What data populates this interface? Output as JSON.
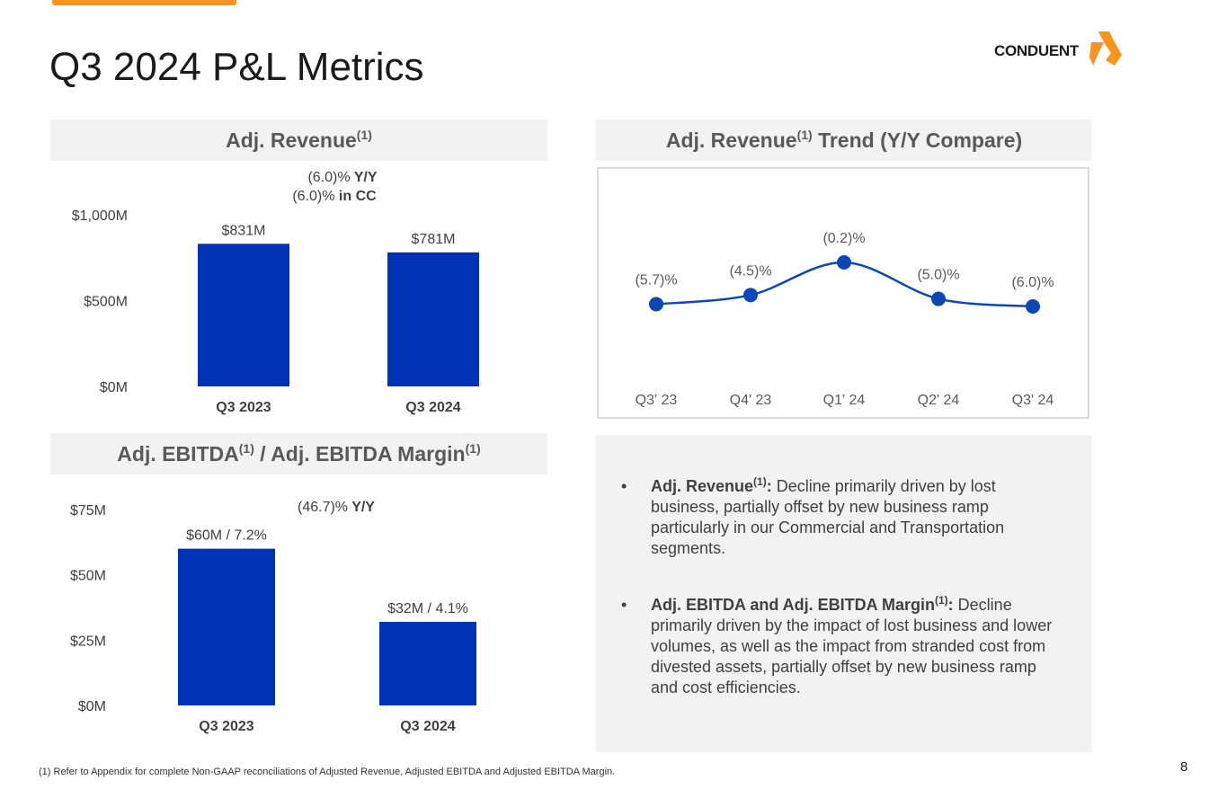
{
  "slide_title": "Q3 2024 P&L Metrics",
  "brand": {
    "name": "CONDUENT",
    "accent": "#f7941d",
    "bar_color": "#0033b5",
    "line_color": "#0b47b5"
  },
  "panels": {
    "revenue_title": "Adj. Revenue",
    "trend_title_a": "Adj. Revenue",
    "trend_title_b": " Trend (Y/Y Compare)",
    "ebitda_title_a": "Adj. EBITDA",
    "ebitda_title_b": " / Adj. EBITDA Margin",
    "footnote_mark": "(1)"
  },
  "chart_data": [
    {
      "type": "bar",
      "title": "Adj. Revenue",
      "categories": [
        "Q3 2023",
        "Q3 2024"
      ],
      "values": [
        831,
        781
      ],
      "value_labels": [
        "$831M",
        "$781M"
      ],
      "yticks": [
        "$0M",
        "$500M",
        "$1,000M"
      ],
      "ytick_values": [
        0,
        500,
        1000
      ],
      "ylim": [
        0,
        1000
      ],
      "annotation_line1_a": "(6.0)%",
      "annotation_line1_b": " Y/Y",
      "annotation_line2_a": "(6.0)%",
      "annotation_line2_b": " in CC"
    },
    {
      "type": "line",
      "title": "Adj. Revenue Trend (Y/Y Compare)",
      "categories": [
        "Q3' 23",
        "Q4' 23",
        "Q1' 24",
        "Q2' 24",
        "Q3' 24"
      ],
      "values": [
        -5.7,
        -4.5,
        -0.2,
        -5.0,
        -6.0
      ],
      "value_labels": [
        "(5.7)%",
        "(4.5)%",
        "(0.2)%",
        "(5.0)%",
        "(6.0)%"
      ]
    },
    {
      "type": "bar",
      "title": "Adj. EBITDA / Adj. EBITDA Margin",
      "categories": [
        "Q3 2023",
        "Q3 2024"
      ],
      "values": [
        60,
        32
      ],
      "value_labels": [
        "$60M / 7.2%",
        "$32M / 4.1%"
      ],
      "yticks": [
        "$0M",
        "$25M",
        "$50M",
        "$75M"
      ],
      "ytick_values": [
        0,
        25,
        50,
        75
      ],
      "ylim": [
        0,
        75
      ],
      "annotation_line1_a": "(46.7)%",
      "annotation_line1_b": " Y/Y"
    }
  ],
  "notes": [
    {
      "bullet": "•",
      "heading": "Adj. Revenue",
      "sup": "(1)",
      "colon": ":",
      "text": " Decline primarily driven by lost business, partially offset by new business ramp particularly in our Commercial and Transportation segments."
    },
    {
      "bullet": "•",
      "heading": "Adj. EBITDA and Adj. EBITDA Margin",
      "sup": "(1)",
      "colon": ":",
      "text": "  Decline primarily driven by the impact of lost business and lower volumes, as well as the impact from stranded cost from divested assets, partially offset by new business ramp and cost efficiencies."
    }
  ],
  "footnote": "(1) Refer to Appendix for complete Non-GAAP reconciliations of Adjusted Revenue, Adjusted EBITDA and Adjusted EBITDA Margin.",
  "page_number": "8"
}
